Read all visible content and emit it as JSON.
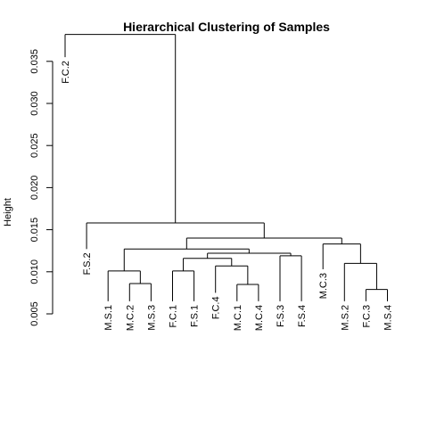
{
  "chart_data": {
    "type": "dendrogram",
    "title": "Hierarchical Clustering of Samples",
    "xlabel": "",
    "ylabel": "Height",
    "ylim": [
      0.005,
      0.0385
    ],
    "yticks": [
      {
        "value": 0.005,
        "label": "0.005"
      },
      {
        "value": 0.01,
        "label": "0.010"
      },
      {
        "value": 0.015,
        "label": "0.015"
      },
      {
        "value": 0.02,
        "label": "0.020"
      },
      {
        "value": 0.025,
        "label": "0.025"
      },
      {
        "value": 0.03,
        "label": "0.030"
      },
      {
        "value": 0.035,
        "label": "0.035"
      }
    ],
    "leaves": [
      "F.C.2",
      "F.S.2",
      "M.S.1",
      "M.C.2",
      "M.S.3",
      "F.C.1",
      "F.S.1",
      "F.C.4",
      "M.C.1",
      "M.C.4",
      "F.S.3",
      "F.S.4",
      "M.C.3",
      "M.S.2",
      "F.C.3",
      "M.S.4"
    ],
    "leaf_heights": [
      0.0355,
      0.0127,
      0.0065,
      0.0065,
      0.0065,
      0.0065,
      0.0065,
      0.0075,
      0.0065,
      0.0065,
      0.0065,
      0.0065,
      0.0103,
      0.0065,
      0.0065,
      0.0065
    ],
    "merges": [
      {
        "id": "m1",
        "left": "leaf:3",
        "right": "leaf:4",
        "height": 0.0086
      },
      {
        "id": "m2",
        "left": "leaf:2",
        "right": "m1",
        "height": 0.0101
      },
      {
        "id": "m3",
        "left": "leaf:5",
        "right": "leaf:6",
        "height": 0.0101
      },
      {
        "id": "m4",
        "left": "leaf:8",
        "right": "leaf:9",
        "height": 0.0085
      },
      {
        "id": "m5",
        "left": "leaf:7",
        "right": "m4",
        "height": 0.0107
      },
      {
        "id": "m6",
        "left": "m3",
        "right": "m5",
        "height": 0.0116
      },
      {
        "id": "m7",
        "left": "leaf:10",
        "right": "leaf:11",
        "height": 0.0119
      },
      {
        "id": "m8",
        "left": "m6",
        "right": "m7",
        "height": 0.0122
      },
      {
        "id": "m9",
        "left": "m2",
        "right": "m8",
        "height": 0.0127
      },
      {
        "id": "m10",
        "left": "leaf:14",
        "right": "leaf:15",
        "height": 0.0079
      },
      {
        "id": "m11",
        "left": "leaf:13",
        "right": "m10",
        "height": 0.011
      },
      {
        "id": "m12",
        "left": "leaf:12",
        "right": "m11",
        "height": 0.0133
      },
      {
        "id": "m13",
        "left": "m9",
        "right": "m12",
        "height": 0.014
      },
      {
        "id": "m14",
        "left": "leaf:1",
        "right": "m13",
        "height": 0.0158
      },
      {
        "id": "m15",
        "left": "leaf:0",
        "right": "m14",
        "height": 0.0382
      }
    ]
  }
}
